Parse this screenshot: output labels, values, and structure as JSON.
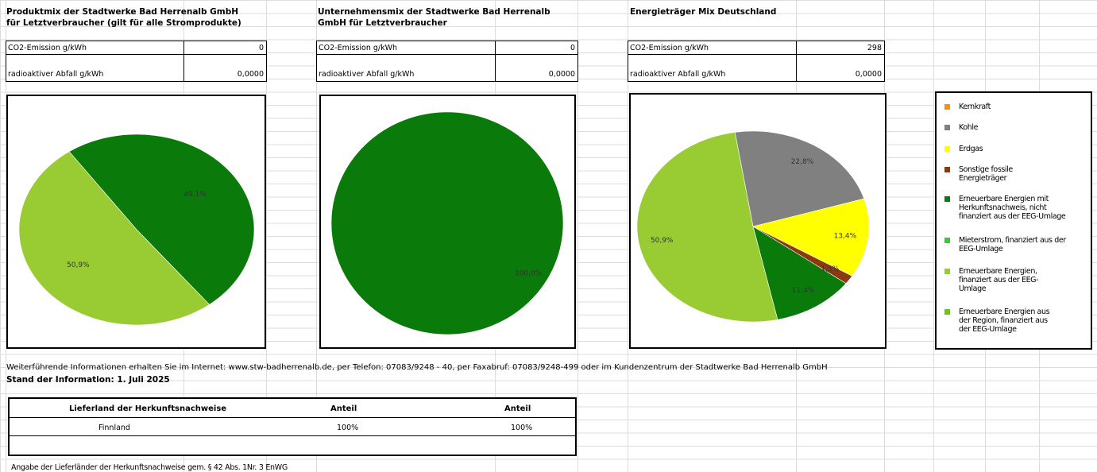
{
  "panels": [
    {
      "title": "Produktmix der Stadtwerke Bad Herrenalb GmbH für Letztverbraucher (gilt für alle Stromprodukte)",
      "co2_label": "CO2-Emission g/kWh",
      "co2_value": "0",
      "waste_label": "radioaktiver Abfall g/kWh",
      "waste_value": "0,0000"
    },
    {
      "title": "Unternehmensmix der Stadtwerke Bad Herrenalb GmbH für Letztverbraucher",
      "co2_label": "CO2-Emission g/kWh",
      "co2_value": "0",
      "waste_label": "radioaktiver Abfall g/kWh",
      "waste_value": "0,0000"
    },
    {
      "title": "Energieträger Mix Deutschland",
      "co2_label": "CO2-Emission g/kWh",
      "co2_value": "298",
      "waste_label": "radioaktiver Abfall g/kWh",
      "waste_value": "0,0000"
    }
  ],
  "chart_data": [
    {
      "type": "pie",
      "slices": [
        {
          "category": "Erneuerbare Energien mit Herkunftsnachweis, nicht finanziert aus der EEG-Umlage",
          "value": 49.1,
          "label": "49,1%",
          "color": "#0a7a0a"
        },
        {
          "category": "Erneuerbare Energien, finanziert aus der EEG-Umlage",
          "value": 50.9,
          "label": "50,9%",
          "color": "#99cc33"
        }
      ]
    },
    {
      "type": "pie",
      "slices": [
        {
          "category": "Erneuerbare Energien mit Herkunftsnachweis, nicht finanziert aus der EEG-Umlage",
          "value": 100.0,
          "label": "100,0%",
          "color": "#0a7a0a"
        }
      ]
    },
    {
      "type": "pie",
      "slices": [
        {
          "category": "Kohle",
          "value": 22.8,
          "label": "22,8%",
          "color": "#808080"
        },
        {
          "category": "Erdgas",
          "value": 13.4,
          "label": "13,4%",
          "color": "#ffff00"
        },
        {
          "category": "Sonstige fossile Energieträger",
          "value": 1.5,
          "label": "1,5%",
          "color": "#8b3a0f"
        },
        {
          "category": "Erneuerbare Energien mit Herkunftsnachweis, nicht finanziert aus der EEG-Umlage",
          "value": 11.4,
          "label": "11,4%",
          "color": "#0a7a0a"
        },
        {
          "category": "Erneuerbare Energien, finanziert aus der EEG-Umlage",
          "value": 50.9,
          "label": "50,9%",
          "color": "#99cc33"
        }
      ]
    }
  ],
  "legend": [
    {
      "label": "Kernkraft",
      "color": "#ff8c1a"
    },
    {
      "label": "Kohle",
      "color": "#808080"
    },
    {
      "label": "Erdgas",
      "color": "#ffff00"
    },
    {
      "label": "Sonstige fossile Energieträger",
      "color": "#8b3a0f"
    },
    {
      "label": "Erneuerbare Energien mit Herkunftsnachweis, nicht finanziert aus der EEG-Umlage",
      "color": "#0a7a0a"
    },
    {
      "label": "Mieterstrom, finanziert aus der EEG-Umlage",
      "color": "#33cc33"
    },
    {
      "label": "Erneuerbare Energien, finanziert aus der EEG-Umlage",
      "color": "#99cc33"
    },
    {
      "label": "Erneuerbare Energien aus der Region, finanziert aus der EEG-Umlage",
      "color": "#66cc00"
    }
  ],
  "info_text": "Weiterführende Informationen erhalten Sie im Internet: www.stw-badherrenalb.de, per Telefon: 07083/9248 - 40, per Faxabruf: 07083/9248-499 oder im Kundenzentrum der Stadtwerke Bad Herrenalb GmbH",
  "stand_text": "Stand der Information: 1. Juli 2025",
  "country_table": {
    "headers": [
      "Lieferland der Herkunftsnachweise",
      "Anteil",
      "Anteil"
    ],
    "rows": [
      [
        "Finnland",
        "100%",
        "100%"
      ]
    ]
  },
  "footnote": "Angabe der Lieferländer der Herkunftsnachweise gem. § 42 Abs. 1Nr. 3 EnWG"
}
